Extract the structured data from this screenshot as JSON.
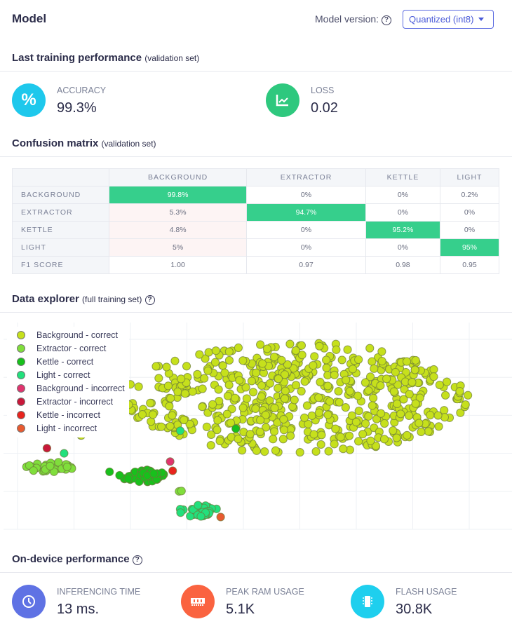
{
  "header": {
    "title": "Model",
    "version_label": "Model version:",
    "version_value": "Quantized (int8)"
  },
  "training": {
    "title": "Last training performance",
    "subtitle": "(validation set)",
    "metrics": [
      {
        "label": "ACCURACY",
        "value": "99.3%",
        "icon": "percent-icon",
        "color": "#1ec8ec"
      },
      {
        "label": "LOSS",
        "value": "0.02",
        "icon": "chart-trend-icon",
        "color": "#2ec87e"
      }
    ]
  },
  "confusion": {
    "title": "Confusion matrix",
    "subtitle": "(validation set)",
    "columns": [
      "BACKGROUND",
      "EXTRACTOR",
      "KETTLE",
      "LIGHT"
    ],
    "rows": [
      {
        "label": "BACKGROUND",
        "cells": [
          "99.8%",
          "0%",
          "0%",
          "0.2%"
        ]
      },
      {
        "label": "EXTRACTOR",
        "cells": [
          "5.3%",
          "94.7%",
          "0%",
          "0%"
        ]
      },
      {
        "label": "KETTLE",
        "cells": [
          "4.8%",
          "0%",
          "95.2%",
          "0%"
        ]
      },
      {
        "label": "LIGHT",
        "cells": [
          "5%",
          "0%",
          "0%",
          "95%"
        ]
      },
      {
        "label": "F1 SCORE",
        "cells": [
          "1.00",
          "0.97",
          "0.98",
          "0.95"
        ]
      }
    ]
  },
  "explorer": {
    "title": "Data explorer",
    "subtitle": "(full training set)"
  },
  "chart_data": {
    "type": "scatter",
    "title": "Data explorer",
    "xlim": [
      0,
      100
    ],
    "ylim": [
      0,
      100
    ],
    "grid": true,
    "legend_placement": "top-left",
    "series": [
      {
        "name": "Background - correct",
        "color": "#c6e01c",
        "clusters": [
          {
            "center": [
              58,
              64
            ],
            "spread": [
              34,
              27
            ],
            "count": 560,
            "seed": 1
          },
          {
            "center": [
              16,
              46
            ],
            "spread": [
              1,
              1
            ],
            "count": 2,
            "seed": 9
          }
        ]
      },
      {
        "name": "Extractor - correct",
        "color": "#80de3c",
        "clusters": [
          {
            "center": [
              9,
              31
            ],
            "spread": [
              5,
              3.5
            ],
            "count": 30,
            "seed": 2
          },
          {
            "center": [
              35,
              19
            ],
            "spread": [
              0.6,
              0.6
            ],
            "count": 2,
            "seed": 11
          }
        ]
      },
      {
        "name": "Kettle - correct",
        "color": "#18c01c",
        "clusters": [
          {
            "center": [
              27.5,
              26
            ],
            "spread": [
              5,
              3
            ],
            "count": 45,
            "seed": 3
          }
        ],
        "points": [
          [
            46,
            49
          ],
          [
            21,
            28
          ]
        ]
      },
      {
        "name": "Light - correct",
        "color": "#22e07c",
        "clusters": [
          {
            "center": [
              38.5,
              9
            ],
            "spread": [
              4,
              3
            ],
            "count": 32,
            "seed": 4
          }
        ],
        "points": [
          [
            35,
            48
          ],
          [
            12,
            37
          ]
        ]
      },
      {
        "name": "Background - incorrect",
        "color": "#e0346e",
        "points": [
          [
            33,
            33
          ]
        ]
      },
      {
        "name": "Extractor - incorrect",
        "color": "#c8183a",
        "points": [
          [
            8.6,
            39.5
          ]
        ]
      },
      {
        "name": "Kettle - incorrect",
        "color": "#e8241e",
        "points": [
          [
            33.5,
            28.5
          ]
        ]
      },
      {
        "name": "Light - incorrect",
        "color": "#e85a30",
        "points": [
          [
            43,
            6
          ]
        ]
      }
    ]
  },
  "ondevice": {
    "title": "On-device performance",
    "metrics": [
      {
        "label": "INFERENCING TIME",
        "value": "13 ms.",
        "icon": "clock-icon",
        "color": "#5f72e4"
      },
      {
        "label": "PEAK RAM USAGE",
        "value": "5.1K",
        "icon": "ram-icon",
        "color": "#fa6340"
      },
      {
        "label": "FLASH USAGE",
        "value": "30.8K",
        "icon": "chip-icon",
        "color": "#1ecfee"
      }
    ]
  }
}
